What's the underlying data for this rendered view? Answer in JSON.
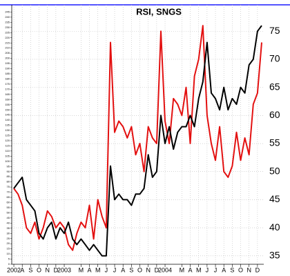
{
  "chart_data": {
    "type": "line",
    "title": "RSI, SNGS",
    "categories": [
      "2002",
      null,
      "A",
      null,
      "S",
      null,
      "O",
      null,
      "N",
      null,
      "D",
      null,
      "2003",
      null,
      null,
      null,
      "M",
      null,
      "A",
      null,
      "M",
      null,
      "J",
      null,
      "J",
      null,
      "A",
      null,
      "S",
      null,
      "O",
      null,
      "N",
      null,
      "D",
      null,
      "2004",
      null,
      null,
      null,
      "M",
      null,
      "A",
      null,
      "M",
      null,
      "J",
      null,
      "J",
      null,
      "A",
      null,
      "S",
      null,
      "O",
      null,
      "N",
      null,
      "D",
      null
    ],
    "series": [
      {
        "name": "Black",
        "color": "#000000",
        "axis": "y2",
        "values": [
          47,
          48,
          49,
          45,
          44,
          43,
          39,
          38,
          40,
          41,
          38,
          40,
          39,
          41,
          38,
          37,
          38,
          37,
          36,
          37,
          36,
          35,
          35,
          51,
          45,
          46,
          45,
          45,
          44,
          46,
          46,
          47,
          53,
          49,
          50,
          60,
          55,
          58,
          54,
          57,
          58,
          58,
          60,
          58,
          63,
          66,
          73,
          64,
          63,
          61,
          65,
          61,
          63,
          62,
          65,
          64,
          69,
          70,
          75,
          76
        ]
      },
      {
        "name": "Red",
        "color": "#e31010",
        "axis": "y2",
        "values": [
          47,
          46,
          44,
          40,
          39,
          41,
          38,
          40,
          43,
          42,
          40,
          41,
          40,
          37,
          36,
          39,
          41,
          40,
          44,
          38,
          45,
          42,
          40,
          73,
          57,
          59,
          58,
          56,
          58,
          53,
          55,
          50,
          58,
          56,
          55,
          75,
          59,
          55,
          63,
          62,
          60,
          65,
          55,
          67,
          70,
          76,
          60,
          55,
          52,
          58,
          50,
          49,
          51,
          57,
          52,
          56,
          53,
          62,
          64,
          73
        ]
      }
    ],
    "ylim": [
      0,
      252
    ],
    "yticks": [
      0,
      5,
      10,
      15,
      20,
      25,
      30,
      35,
      40,
      45,
      50,
      55,
      60,
      65,
      70,
      75,
      80,
      85,
      90,
      95,
      100,
      105,
      110,
      115,
      120,
      125,
      130,
      135,
      140,
      145,
      150,
      155,
      160,
      165,
      170,
      175,
      180,
      185,
      190,
      195,
      200,
      205,
      210,
      215,
      220,
      225,
      230,
      235,
      240,
      245
    ],
    "y2lim": [
      33.5,
      79.7
    ],
    "y2ticks": [
      35,
      40,
      45,
      50,
      55,
      60,
      65,
      70,
      75
    ],
    "grid": true
  }
}
